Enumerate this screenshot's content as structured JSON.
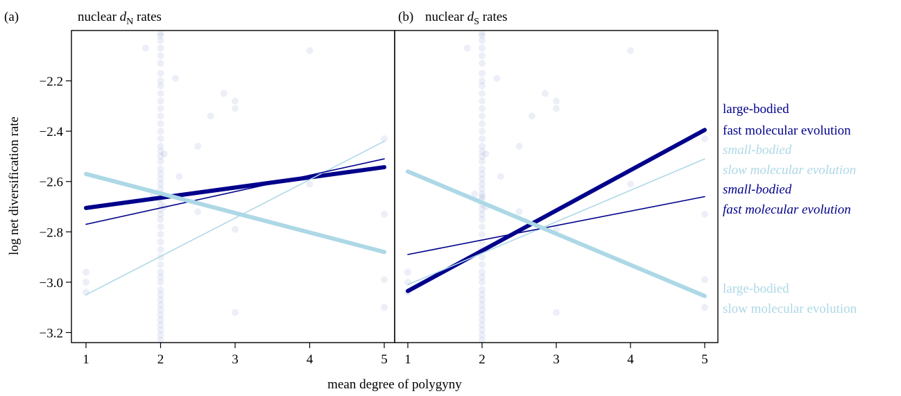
{
  "chart_data": [
    {
      "type": "scatter",
      "panel_label": "(a)",
      "title_prefix": "nuclear ",
      "title_var": "d",
      "title_sub": "N",
      "title_suffix": " rates",
      "xlim": [
        1,
        5
      ],
      "ylim": [
        -3.24,
        -2.0
      ],
      "xticks": [
        "1",
        "2",
        "3",
        "4",
        "5"
      ],
      "yticks": [
        "-3.2",
        "-3.0",
        "-2.8",
        "-2.6",
        "-2.4",
        "-2.2"
      ],
      "lines": [
        {
          "name": "large-bodied fast molecular evolution",
          "color": "#00008b",
          "x": [
            1,
            5
          ],
          "y": [
            -2.705,
            -2.543
          ]
        },
        {
          "name": "small-bodied slow molecular evolution",
          "color": "#add8e6",
          "x": [
            1,
            5
          ],
          "y": [
            -3.05,
            -2.44
          ]
        },
        {
          "name": "small-bodied fast molecular evolution",
          "color": "#00008b",
          "x": [
            1,
            5
          ],
          "y": [
            -2.77,
            -2.51
          ]
        },
        {
          "name": "large-bodied slow molecular evolution",
          "color": "#add8e6",
          "x": [
            1,
            5
          ],
          "y": [
            -2.57,
            -2.88
          ]
        }
      ]
    },
    {
      "type": "scatter",
      "panel_label": "(b)",
      "title_prefix": "nuclear ",
      "title_var": "d",
      "title_sub": "S",
      "title_suffix": " rates",
      "xlim": [
        1,
        5
      ],
      "ylim": [
        -3.24,
        -2.0
      ],
      "xticks": [
        "1",
        "2",
        "3",
        "4",
        "5"
      ],
      "yticks": [],
      "lines": [
        {
          "name": "large-bodied fast molecular evolution",
          "color": "#00008b",
          "x": [
            1,
            5
          ],
          "y": [
            -3.035,
            -2.395
          ]
        },
        {
          "name": "small-bodied slow molecular evolution",
          "color": "#add8e6",
          "x": [
            1,
            5
          ],
          "y": [
            -3.01,
            -2.51
          ]
        },
        {
          "name": "small-bodied fast molecular evolution",
          "color": "#00008b",
          "x": [
            1,
            5
          ],
          "y": [
            -2.89,
            -2.66
          ]
        },
        {
          "name": "large-bodied slow molecular evolution",
          "color": "#add8e6",
          "x": [
            1,
            5
          ],
          "y": [
            -2.56,
            -3.055
          ]
        }
      ]
    }
  ],
  "points": {
    "x": [
      1,
      1,
      1,
      1.8,
      1.9,
      2,
      2,
      2,
      2,
      2,
      2,
      2,
      2,
      2,
      2,
      2,
      2,
      2,
      2,
      2,
      2,
      2,
      2,
      2,
      2,
      2,
      2,
      2,
      2,
      2,
      2,
      2,
      2,
      2,
      2,
      2,
      2,
      2,
      2,
      2,
      2,
      2,
      2,
      2,
      2,
      2,
      2,
      2,
      2,
      2,
      2,
      2,
      2,
      2,
      2,
      2,
      2,
      2.05,
      2.05,
      2.2,
      2.25,
      2.5,
      2.5,
      2.67,
      2.85,
      3,
      3,
      3,
      3,
      4,
      4,
      5,
      5,
      5,
      5
    ],
    "y": [
      -2.96,
      -3.0,
      -3.04,
      -2.07,
      -2.65,
      -2.01,
      -2.02,
      -2.04,
      -2.07,
      -2.1,
      -2.13,
      -2.17,
      -2.2,
      -2.22,
      -2.25,
      -2.28,
      -2.31,
      -2.34,
      -2.37,
      -2.4,
      -2.43,
      -2.46,
      -2.48,
      -2.5,
      -2.52,
      -2.55,
      -2.57,
      -2.59,
      -2.61,
      -2.63,
      -2.65,
      -2.67,
      -2.69,
      -2.71,
      -2.73,
      -2.75,
      -2.78,
      -2.81,
      -2.84,
      -2.87,
      -2.9,
      -2.93,
      -2.96,
      -2.98,
      -3.0,
      -3.03,
      -3.05,
      -3.07,
      -3.09,
      -3.11,
      -3.13,
      -3.15,
      -3.17,
      -3.19,
      -3.21,
      -3.23,
      -2.66,
      -2.49,
      -2.7,
      -2.19,
      -2.58,
      -2.46,
      -2.72,
      -2.34,
      -2.25,
      -2.28,
      -2.31,
      -2.79,
      -3.12,
      -2.08,
      -2.61,
      -2.43,
      -2.73,
      -2.99,
      -3.1
    ],
    "color": "#7b8fc7"
  },
  "legend": [
    {
      "label": "large-bodied",
      "color": "#00008b",
      "italic": false
    },
    {
      "label": "fast molecular evolution",
      "color": "#00008b",
      "italic": false
    },
    {
      "label": "small-bodied",
      "color": "#add8e6",
      "italic": true
    },
    {
      "label": "slow molecular evolution",
      "color": "#add8e6",
      "italic": true
    },
    {
      "label": "small-bodied",
      "color": "#00008b",
      "italic": true
    },
    {
      "label": "fast molecular evolution",
      "color": "#00008b",
      "italic": true
    },
    {
      "label": "large-bodied",
      "color": "#add8e6",
      "italic": false
    },
    {
      "label": "slow molecular evolution",
      "color": "#add8e6",
      "italic": false
    }
  ],
  "xlabel": "mean degree of polygyny",
  "ylabel": "log net diversification rate"
}
